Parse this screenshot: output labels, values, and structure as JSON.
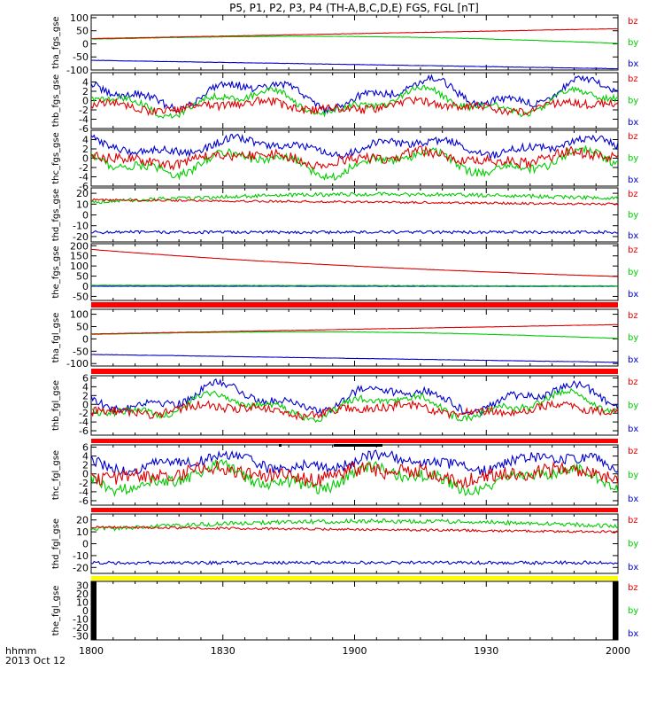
{
  "title": "P5, P1, P2, P3, P4 (TH-A,B,C,D,E) FGS, FGL [nT]",
  "colors": {
    "bx": "#0000cc",
    "by": "#00cc00",
    "bz": "#dd0000",
    "flag_red": "#ff0000",
    "flag_yellow": "#ffff00"
  },
  "time_axis": {
    "row_label_1": "hhmm",
    "row_label_2": "2013 Oct 12",
    "ticks": [
      "1800",
      "1830",
      "1900",
      "1930",
      "2000"
    ],
    "range_hours": [
      18.0,
      20.0
    ]
  },
  "chart_data": [
    {
      "type": "line",
      "ylabel": "tha_fgs_gse",
      "ylim": [
        -100,
        110
      ],
      "yticks": [
        100,
        50,
        0,
        -50,
        -100
      ],
      "legend": [
        "bz",
        "by",
        "bx"
      ],
      "series": [
        {
          "name": "bz",
          "shape": "linear",
          "from": 20,
          "to": 58,
          "noise": 0.6
        },
        {
          "name": "by",
          "shape": "hump",
          "from": 18,
          "to": 2,
          "mid": 28,
          "noise": 0.6
        },
        {
          "name": "bx",
          "shape": "linear",
          "from": -63,
          "to": -95,
          "noise": 0.6
        }
      ]
    },
    {
      "type": "line",
      "ylabel": "thb_fgs_gse",
      "ylim": [
        -6,
        6
      ],
      "yticks": [
        4,
        2,
        0,
        -2,
        -4,
        -6
      ],
      "legend": [
        "bz",
        "by",
        "bx"
      ],
      "series": [
        {
          "name": "bz",
          "shape": "wavy",
          "base": -1.2,
          "amp": 1.3,
          "noise": 0.9
        },
        {
          "name": "by",
          "shape": "wavy",
          "base": -0.3,
          "amp": 3.2,
          "noise": 0.7
        },
        {
          "name": "bx",
          "shape": "wavy",
          "base": 1.5,
          "amp": 3.5,
          "noise": 0.8
        }
      ]
    },
    {
      "type": "line",
      "ylabel": "thc_fgs_gse",
      "ylim": [
        -6,
        6
      ],
      "yticks": [
        4,
        2,
        0,
        -2,
        -4,
        -6
      ],
      "legend": [
        "bz",
        "by",
        "bx"
      ],
      "series": [
        {
          "name": "bz",
          "shape": "wavy",
          "base": 0.0,
          "amp": 1.5,
          "noise": 1.1
        },
        {
          "name": "by",
          "shape": "wavy",
          "base": -1.0,
          "amp": 3.0,
          "noise": 0.9
        },
        {
          "name": "bx",
          "shape": "wavy",
          "base": 2.5,
          "amp": 2.0,
          "noise": 0.8
        }
      ]
    },
    {
      "type": "line",
      "ylabel": "thd_fgs_gse",
      "ylim": [
        -25,
        25
      ],
      "yticks": [
        20,
        10,
        0,
        -10,
        -20
      ],
      "legend": [
        "bz",
        "by",
        "bx"
      ],
      "series": [
        {
          "name": "bz",
          "shape": "linear",
          "from": 14,
          "to": 10,
          "noise": 1.0
        },
        {
          "name": "by",
          "shape": "hump",
          "from": 12,
          "to": 15,
          "mid": 19,
          "noise": 1.8
        },
        {
          "name": "bx",
          "shape": "linear",
          "from": -16,
          "to": -16,
          "noise": 1.4
        }
      ]
    },
    {
      "type": "line",
      "ylabel": "the_fgs_gse",
      "ylim": [
        -70,
        210
      ],
      "yticks": [
        200,
        150,
        100,
        50,
        0,
        -50
      ],
      "legend": [
        "bz",
        "by",
        "bx"
      ],
      "series": [
        {
          "name": "bz",
          "shape": "decay",
          "from": 182,
          "to": 48,
          "noise": 0.5
        },
        {
          "name": "by",
          "shape": "linear",
          "from": 5,
          "to": 2,
          "noise": 1.0
        },
        {
          "name": "bx",
          "shape": "linear",
          "from": 0,
          "to": 0,
          "noise": 1.0
        }
      ]
    },
    {
      "type": "line",
      "ylabel": "tha_fgl_gse",
      "ylim": [
        -110,
        120
      ],
      "yticks": [
        100,
        50,
        0,
        -50,
        -100
      ],
      "legend": [
        "bz",
        "by",
        "bx"
      ],
      "series": [
        {
          "name": "bz",
          "shape": "linear",
          "from": 20,
          "to": 58,
          "noise": 0.6
        },
        {
          "name": "by",
          "shape": "hump",
          "from": 18,
          "to": 2,
          "mid": 28,
          "noise": 0.6
        },
        {
          "name": "bx",
          "shape": "linear",
          "from": -63,
          "to": -95,
          "noise": 0.6
        }
      ]
    },
    {
      "type": "line",
      "ylabel": "thb_fgl_gse",
      "ylim": [
        -7,
        6.5
      ],
      "yticks": [
        6,
        4,
        2,
        0,
        -2,
        -4,
        -6
      ],
      "legend": [
        "bz",
        "by",
        "bx"
      ],
      "series": [
        {
          "name": "bz",
          "shape": "wavy",
          "base": -1.2,
          "amp": 1.3,
          "noise": 1.0
        },
        {
          "name": "by",
          "shape": "wavy",
          "base": -0.3,
          "amp": 3.2,
          "noise": 0.8
        },
        {
          "name": "bx",
          "shape": "wavy",
          "base": 1.5,
          "amp": 3.5,
          "noise": 0.9
        }
      ]
    },
    {
      "type": "line",
      "ylabel": "thc_fgl_gse",
      "ylim": [
        -7,
        6.5
      ],
      "yticks": [
        6,
        4,
        2,
        0,
        -2,
        -4,
        -6
      ],
      "legend": [
        "bz",
        "by",
        "bx"
      ],
      "series": [
        {
          "name": "bz",
          "shape": "wavy",
          "base": 0.0,
          "amp": 1.5,
          "noise": 1.6
        },
        {
          "name": "by",
          "shape": "wavy",
          "base": -1.0,
          "amp": 3.0,
          "noise": 1.3
        },
        {
          "name": "bx",
          "shape": "wavy",
          "base": 2.5,
          "amp": 2.0,
          "noise": 1.2
        }
      ]
    },
    {
      "type": "line",
      "ylabel": "thd_fgl_gse",
      "ylim": [
        -25,
        25
      ],
      "yticks": [
        20,
        10,
        0,
        -10,
        -20
      ],
      "legend": [
        "bz",
        "by",
        "bx"
      ],
      "series": [
        {
          "name": "bz",
          "shape": "linear",
          "from": 14,
          "to": 10,
          "noise": 1.0
        },
        {
          "name": "by",
          "shape": "hump",
          "from": 12,
          "to": 15,
          "mid": 19,
          "noise": 1.8
        },
        {
          "name": "bx",
          "shape": "linear",
          "from": -16,
          "to": -16,
          "noise": 1.4
        }
      ]
    },
    {
      "type": "line",
      "ylabel": "the_fgl_gse",
      "ylim": [
        -35,
        35
      ],
      "yticks": [
        30,
        20,
        10,
        0,
        -10,
        -20,
        -30
      ],
      "legend": [
        "bz",
        "by",
        "bx"
      ],
      "series": []
    }
  ]
}
